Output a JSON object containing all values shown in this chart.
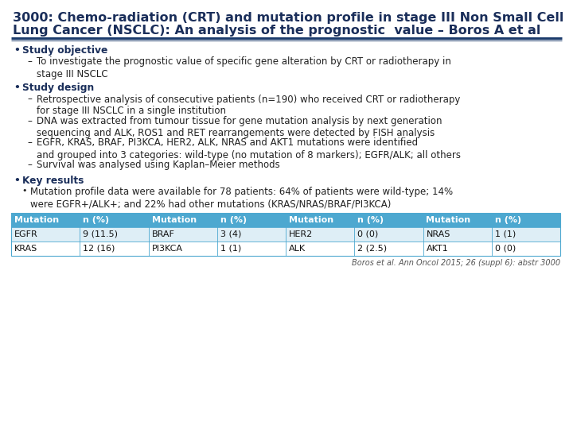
{
  "title_line1": "3000: Chemo-radiation (CRT) and mutation profile in stage III Non Small Cell",
  "title_line2": "Lung Cancer (NSCLC): An analysis of the prognostic  value – Boros A et al",
  "title_color": "#1a2e5a",
  "title_fontsize": 11.5,
  "divider_color": "#1a3a6b",
  "bg_color": "#ffffff",
  "bullet_color": "#1a2e5a",
  "body_fontsize": 8.5,
  "bold_fontsize": 8.8,
  "bullet1_header": "Study objective",
  "bullet1_sub": "To investigate the prognostic value of specific gene alteration by CRT or radiotherapy in\nstage III NSCLC",
  "bullet2_header": "Study design",
  "bullet2_items": [
    "Retrospective analysis of consecutive patients (n=190) who received CRT or radiotherapy\nfor stage III NSCLC in a single institution",
    "DNA was extracted from tumour tissue for gene mutation analysis by next generation\nsequencing and ALK, ROS1 and RET rearrangements were detected by FISH analysis",
    "EGFR, KRAS, BRAF, PI3KCA, HER2, ALK, NRAS and AKT1 mutations were identified\nand grouped into 3 categories: wild-type (no mutation of 8 markers); EGFR/ALK; all others",
    "Survival was analysed using Kaplan–Meier methods"
  ],
  "bullet3_header": "Key results",
  "bullet3_sub": "Mutation profile data were available for 78 patients: 64% of patients were wild-type; 14%\nwere EGFR+/ALK+; and 22% had other mutations (KRAS/NRAS/BRAF/PI3KCA)",
  "table_header_bg": "#4da8d0",
  "table_header_text": "#ffffff",
  "table_row1_bg": "#deeef6",
  "table_row2_bg": "#ffffff",
  "table_border_color": "#4da8d0",
  "table_headers": [
    "Mutation",
    "n (%)",
    "Mutation",
    "n (%)",
    "Mutation",
    "n (%)",
    "Mutation",
    "n (%)"
  ],
  "table_row1": [
    "EGFR",
    "9 (11.5)",
    "BRAF",
    "3 (4)",
    "HER2",
    "0 (0)",
    "NRAS",
    "1 (1)"
  ],
  "table_row2": [
    "KRAS",
    "12 (16)",
    "PI3KCA",
    "1 (1)",
    "ALK",
    "2 (2.5)",
    "AKT1",
    "0 (0)"
  ],
  "citation": "Boros et al. Ann Oncol 2015; 26 (suppl 6): abstr 3000",
  "citation_fontsize": 7.0
}
